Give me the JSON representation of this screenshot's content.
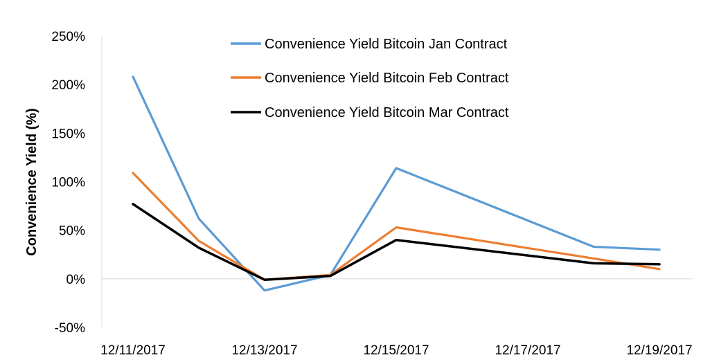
{
  "chart_data": {
    "type": "line",
    "title": "",
    "xlabel": "",
    "ylabel": "Convenience Yield (%)",
    "ylim": [
      -50,
      250
    ],
    "y_ticks": [
      250,
      200,
      150,
      100,
      50,
      0,
      -50
    ],
    "y_tick_labels": [
      "250%",
      "200%",
      "150%",
      "100%",
      "50%",
      "0%",
      "-50%"
    ],
    "x_domain": [
      "12/11/2017",
      "12/19/2017"
    ],
    "x_tick_labels": [
      "12/11/2017",
      "12/13/2017",
      "12/15/2017",
      "12/17/2017",
      "12/19/2017"
    ],
    "x_tick_days": [
      0,
      2,
      4,
      6,
      8
    ],
    "x": [
      0,
      1,
      2,
      3,
      4,
      7,
      8
    ],
    "legend_position": "top-center",
    "grid": false,
    "series": [
      {
        "name": "Convenience Yield Bitcoin Jan Contract",
        "color": "#5B9BD5",
        "values": [
          208,
          62,
          -12,
          4,
          114,
          33,
          30
        ]
      },
      {
        "name": "Convenience Yield Bitcoin Feb Contract",
        "color": "#ED7D31",
        "values": [
          109,
          39,
          -1,
          4,
          53,
          21,
          10
        ]
      },
      {
        "name": "Convenience Yield Bitcoin Mar Contract",
        "color": "#000000",
        "values": [
          77,
          32,
          -1,
          3,
          40,
          16,
          15
        ]
      }
    ]
  }
}
